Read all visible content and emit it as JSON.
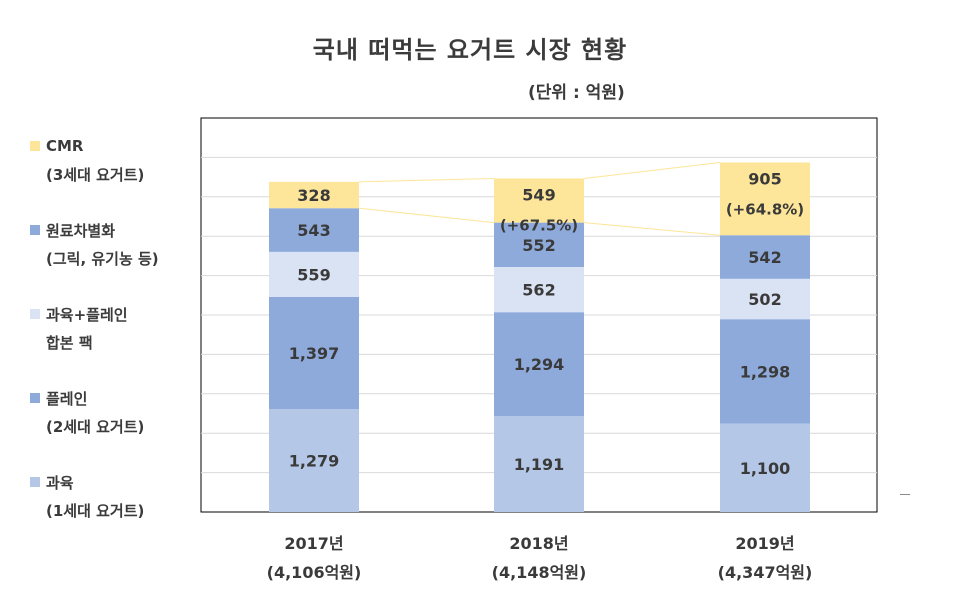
{
  "title": "국내 떠먹는 요거트 시장 현황",
  "unit": "(단위 : 억원)",
  "legend": [
    {
      "line1": "CMR",
      "line2": "(3세대 요거트)",
      "color": "#fde699"
    },
    {
      "line1": "원료차별화",
      "line2": "(그릭, 유기농 등)",
      "color": "#8eaadb"
    },
    {
      "line1": "과육+플레인",
      "line2": "합본 팩",
      "color": "#dae3f3"
    },
    {
      "line1": "플레인",
      "line2": "(2세대 요거트)",
      "color": "#8eaadb"
    },
    {
      "line1": "과육",
      "line2": "(1세대 요거트)",
      "color": "#b4c7e7"
    }
  ],
  "chart_data": {
    "type": "bar",
    "stacked": true,
    "categories": [
      "2017년",
      "2018년",
      "2019년"
    ],
    "category_totals": [
      "(4,106억원)",
      "(4,148억원)",
      "(4,347억원)"
    ],
    "series": [
      {
        "name": "과육 (1세대 요거트)",
        "values": [
          1279,
          1191,
          1100
        ],
        "color": "#b4c7e7"
      },
      {
        "name": "플레인 (2세대 요거트)",
        "values": [
          1397,
          1294,
          1298
        ],
        "color": "#8eaadb"
      },
      {
        "name": "과육+플레인 합본 팩",
        "values": [
          559,
          562,
          502
        ],
        "color": "#dae3f3"
      },
      {
        "name": "원료차별화 (그릭, 유기농 등)",
        "values": [
          543,
          552,
          542
        ],
        "color": "#8eaadb"
      },
      {
        "name": "CMR (3세대 요거트)",
        "values": [
          328,
          549,
          905
        ],
        "color": "#fde699"
      }
    ],
    "value_labels": [
      [
        "1,279",
        "1,191",
        "1,100"
      ],
      [
        "1,397",
        "1,294",
        "1,298"
      ],
      [
        "559",
        "562",
        "502"
      ],
      [
        "543",
        "552",
        "542"
      ],
      [
        "328",
        "549",
        "905"
      ]
    ],
    "growth_labels": [
      "",
      "(+67.5%)",
      "(+64.8%)"
    ],
    "ylim": [
      0,
      4900
    ],
    "grid": true
  }
}
